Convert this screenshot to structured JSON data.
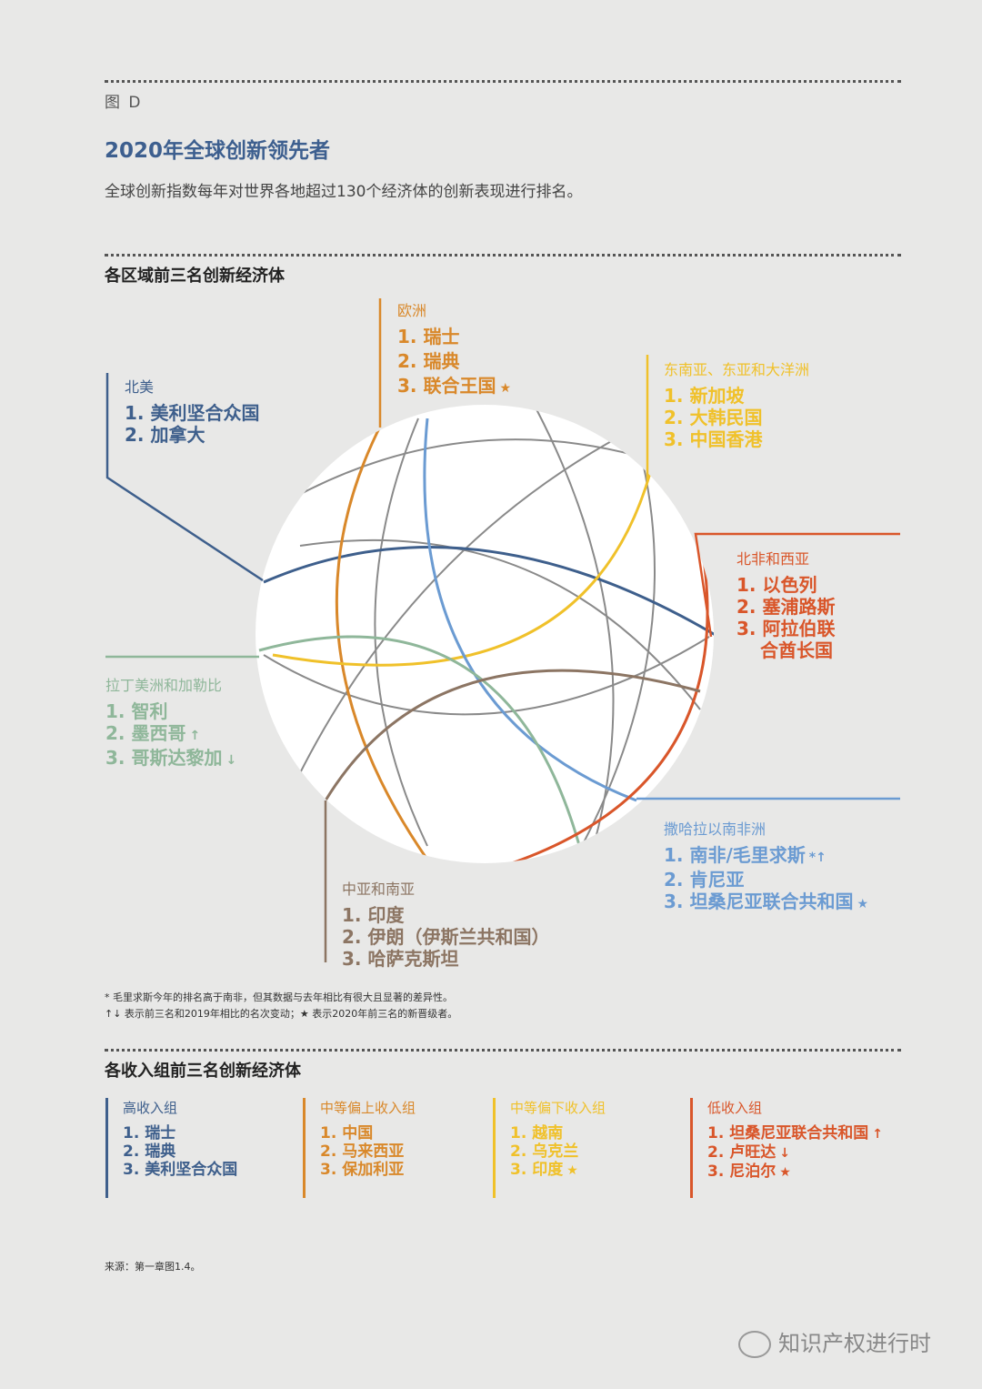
{
  "header": {
    "figure_label": "图 D",
    "title": "2020年全球创新领先者",
    "subtitle": "全球创新指数每年对世界各地超过130个经济体的创新表现进行排名。"
  },
  "regional_section": {
    "heading": "各区域前三名创新经济体",
    "regions": [
      {
        "name": "欧洲",
        "color": "#d9882a",
        "items": [
          "1. 瑞士",
          "2. 瑞典",
          "3. 联合王国"
        ],
        "marks": [
          "",
          "",
          "★"
        ]
      },
      {
        "name": "北美",
        "color": "#3e5f8c",
        "items": [
          "1. 美利坚合众国",
          "2. 加拿大"
        ],
        "marks": [
          "",
          ""
        ]
      },
      {
        "name": "东南亚、东亚和大洋洲",
        "color": "#f0c12a",
        "items": [
          "1. 新加坡",
          "2. 大韩民国",
          "3. 中国香港"
        ],
        "marks": [
          "",
          "",
          ""
        ]
      },
      {
        "name": "北非和西亚",
        "color": "#d9562a",
        "items": [
          "1. 以色列",
          "2. 塞浦路斯",
          "3. 阿拉伯联",
          "合酋长国"
        ],
        "marks": [
          "",
          "",
          "",
          ""
        ]
      },
      {
        "name": "拉丁美洲和加勒比",
        "color": "#8fb79a",
        "items": [
          "1. 智利",
          "2. 墨西哥",
          "3. 哥斯达黎加"
        ],
        "marks": [
          "",
          "↑",
          "↓"
        ]
      },
      {
        "name": "撒哈拉以南非洲",
        "color": "#6b9bd2",
        "items": [
          "1. 南非/毛里求斯",
          "2. 肯尼亚",
          "3. 坦桑尼亚联合共和国"
        ],
        "marks": [
          "*↑",
          "",
          "★"
        ]
      },
      {
        "name": "中亚和南亚",
        "color": "#8c7563",
        "items": [
          "1. 印度",
          "2. 伊朗（伊斯兰共和国）",
          "3. 哈萨克斯坦"
        ],
        "marks": [
          "",
          "",
          ""
        ]
      }
    ]
  },
  "footnotes": {
    "note1": "* 毛里求斯今年的排名高于南非，但其数据与去年相比有很大且显著的差异性。",
    "note2": "↑↓ 表示前三名和2019年相比的名次变动；★ 表示2020年前三名的新晋级者。"
  },
  "income_section": {
    "heading": "各收入组前三名创新经济体",
    "groups": [
      {
        "name": "高收入组",
        "color": "#3e5f8c",
        "items": [
          "1. 瑞士",
          "2. 瑞典",
          "3. 美利坚合众国"
        ],
        "marks": [
          "",
          "",
          ""
        ]
      },
      {
        "name": "中等偏上收入组",
        "color": "#d9882a",
        "items": [
          "1. 中国",
          "2. 马来西亚",
          "3. 保加利亚"
        ],
        "marks": [
          "",
          "",
          ""
        ]
      },
      {
        "name": "中等偏下收入组",
        "color": "#f0c12a",
        "items": [
          "1. 越南",
          "2. 乌克兰",
          "3. 印度"
        ],
        "marks": [
          "",
          "",
          "★"
        ]
      },
      {
        "name": "低收入组",
        "color": "#d9562a",
        "items": [
          "1. 坦桑尼亚联合共和国",
          "2. 卢旺达",
          "3. 尼泊尔"
        ],
        "marks": [
          "↑",
          "↓",
          "★"
        ]
      }
    ]
  },
  "source": "来源：第一章图1.4。",
  "watermark": "知识产权进行时"
}
